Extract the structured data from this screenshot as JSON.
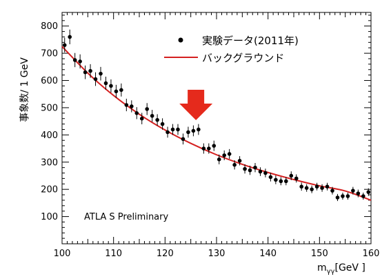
{
  "chart_data": {
    "type": "scatter",
    "xlabel": "m",
    "xlabel_sub": "γγ",
    "xlabel_unit": "[GeV ]",
    "ylabel": "事象数/ 1 GeV",
    "xlim": [
      100,
      160
    ],
    "ylim": [
      0,
      850
    ],
    "x_ticks": [
      100,
      110,
      120,
      130,
      140,
      150,
      160
    ],
    "y_ticks": [
      100,
      200,
      300,
      400,
      500,
      600,
      700,
      800
    ],
    "grid": false,
    "legend_position": "top-center",
    "annotation": "ATLA S  Preliminary",
    "series": [
      {
        "name": "実験データ(2011年)",
        "kind": "points_with_error_bars",
        "color": "#000000",
        "x": [
          100.5,
          101.5,
          102.5,
          103.5,
          104.5,
          105.5,
          106.5,
          107.5,
          108.5,
          109.5,
          110.5,
          111.5,
          112.5,
          113.5,
          114.5,
          115.5,
          116.5,
          117.5,
          118.5,
          119.5,
          120.5,
          121.5,
          122.5,
          123.5,
          124.5,
          125.5,
          126.5,
          127.5,
          128.5,
          129.5,
          130.5,
          131.5,
          132.5,
          133.5,
          134.5,
          135.5,
          136.5,
          137.5,
          138.5,
          139.5,
          140.5,
          141.5,
          142.5,
          143.5,
          144.5,
          145.5,
          146.5,
          147.5,
          148.5,
          149.5,
          150.5,
          151.5,
          152.5,
          153.5,
          154.5,
          155.5,
          156.5,
          157.5,
          158.5,
          159.5
        ],
        "y": [
          730,
          760,
          675,
          670,
          630,
          635,
          605,
          625,
          590,
          580,
          560,
          565,
          510,
          505,
          480,
          460,
          495,
          470,
          455,
          440,
          410,
          420,
          420,
          385,
          410,
          415,
          420,
          350,
          350,
          360,
          310,
          325,
          330,
          290,
          305,
          275,
          270,
          280,
          265,
          260,
          245,
          235,
          230,
          230,
          250,
          240,
          210,
          205,
          200,
          210,
          205,
          210,
          195,
          170,
          175,
          175,
          195,
          185,
          175,
          190
        ],
        "err": [
          27,
          27,
          26,
          26,
          25,
          25,
          25,
          25,
          24,
          24,
          24,
          24,
          23,
          22,
          22,
          21,
          22,
          22,
          21,
          21,
          20,
          20,
          20,
          20,
          20,
          20,
          20,
          19,
          19,
          19,
          18,
          18,
          18,
          17,
          17,
          17,
          17,
          17,
          16,
          16,
          16,
          16,
          15,
          15,
          16,
          15,
          15,
          14,
          14,
          14,
          14,
          14,
          14,
          13,
          13,
          13,
          14,
          14,
          13,
          14
        ]
      },
      {
        "name": "バックグラウンド",
        "kind": "fit_curve",
        "color": "#d42020",
        "x": [
          100,
          105,
          110,
          115,
          120,
          125,
          130,
          135,
          140,
          145,
          150,
          155,
          160
        ],
        "y": [
          725,
          627,
          545,
          476,
          418,
          369,
          327,
          292,
          262,
          236,
          213,
          194,
          160
        ]
      }
    ],
    "highlight": {
      "kind": "arrow",
      "color": "#e52a1c",
      "x": 126,
      "label": ""
    }
  }
}
